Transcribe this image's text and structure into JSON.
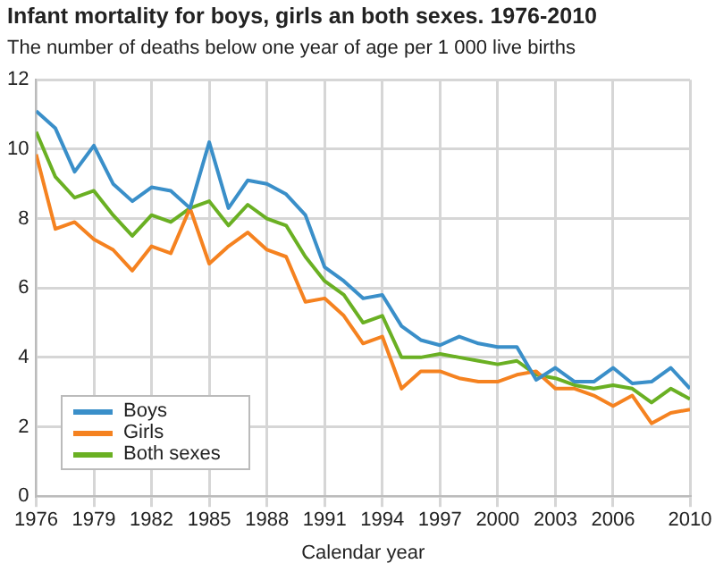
{
  "chart_data": {
    "type": "line",
    "title": "Infant mortality for boys, girls an both sexes. 1976-2010",
    "subtitle": "The number of deaths below one year of age per 1 000 live births",
    "xlabel": "Calendar year",
    "x": [
      1976,
      1977,
      1978,
      1979,
      1980,
      1981,
      1982,
      1983,
      1984,
      1985,
      1986,
      1987,
      1988,
      1989,
      1990,
      1991,
      1992,
      1993,
      1994,
      1995,
      1996,
      1997,
      1998,
      1999,
      2000,
      2001,
      2002,
      2003,
      2004,
      2005,
      2006,
      2007,
      2008,
      2009,
      2010
    ],
    "series": [
      {
        "name": "Boys",
        "color": "#3a8fc9",
        "values": [
          11.1,
          10.6,
          9.35,
          10.1,
          9.0,
          8.5,
          8.9,
          8.8,
          8.3,
          10.2,
          8.3,
          9.1,
          9.0,
          8.7,
          8.1,
          6.6,
          6.2,
          5.7,
          5.8,
          4.9,
          4.5,
          4.35,
          4.6,
          4.4,
          4.3,
          4.3,
          3.35,
          3.7,
          3.3,
          3.3,
          3.7,
          3.25,
          3.3,
          3.7,
          3.1
        ]
      },
      {
        "name": "Girls",
        "color": "#f58220",
        "values": [
          9.85,
          7.7,
          7.9,
          7.4,
          7.1,
          6.5,
          7.2,
          7.0,
          8.3,
          6.7,
          7.2,
          7.6,
          7.1,
          6.9,
          5.6,
          5.7,
          5.2,
          4.4,
          4.6,
          3.1,
          3.6,
          3.6,
          3.4,
          3.3,
          3.3,
          3.5,
          3.6,
          3.1,
          3.1,
          2.9,
          2.6,
          2.9,
          2.1,
          2.4,
          2.5
        ]
      },
      {
        "name": "Both sexes",
        "color": "#6ab023",
        "values": [
          10.5,
          9.2,
          8.6,
          8.8,
          8.1,
          7.5,
          8.1,
          7.9,
          8.3,
          8.5,
          7.8,
          8.4,
          8.0,
          7.8,
          6.9,
          6.2,
          5.8,
          5.0,
          5.2,
          4.0,
          4.0,
          4.1,
          4.0,
          3.9,
          3.8,
          3.9,
          3.5,
          3.4,
          3.2,
          3.1,
          3.2,
          3.1,
          2.7,
          3.1,
          2.8
        ]
      }
    ],
    "xlim": [
      1976,
      2010
    ],
    "xticks": [
      1976,
      1979,
      1982,
      1985,
      1988,
      1991,
      1994,
      1997,
      2000,
      2003,
      2006,
      2010
    ],
    "ylim": [
      0,
      12
    ],
    "yticks": [
      0,
      2,
      4,
      6,
      8,
      10,
      12
    ],
    "grid": true,
    "legend": "bottom left",
    "marker": "none",
    "line_style": "solid"
  }
}
